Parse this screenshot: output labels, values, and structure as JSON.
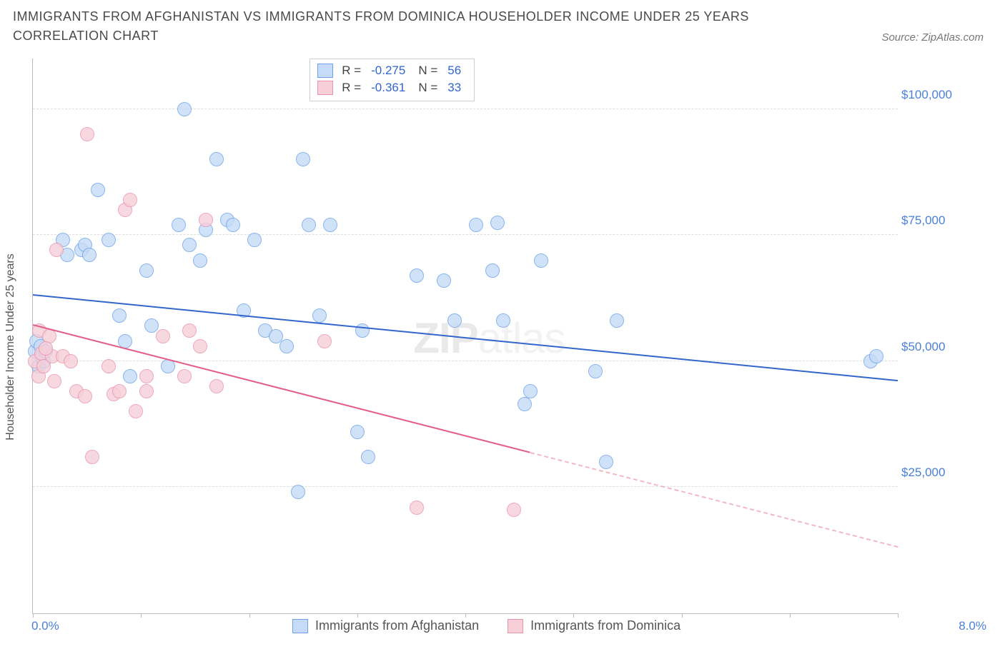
{
  "title": "IMMIGRANTS FROM AFGHANISTAN VS IMMIGRANTS FROM DOMINICA HOUSEHOLDER INCOME UNDER 25 YEARS CORRELATION CHART",
  "source": "Source: ZipAtlas.com",
  "watermark_a": "ZIP",
  "watermark_b": "atlas",
  "chart": {
    "type": "scatter",
    "y_axis_label": "Householder Income Under 25 years",
    "xlim": [
      0,
      8
    ],
    "ylim": [
      0,
      110000
    ],
    "x_tick_positions": [
      0,
      1,
      2,
      3,
      4,
      5,
      6,
      7,
      8
    ],
    "x_start_label": "0.0%",
    "x_end_label": "8.0%",
    "y_ticks": [
      {
        "v": 25000,
        "label": "$25,000"
      },
      {
        "v": 50000,
        "label": "$50,000"
      },
      {
        "v": 75000,
        "label": "$75,000"
      },
      {
        "v": 100000,
        "label": "$100,000"
      }
    ],
    "grid_color": "#dddddd",
    "axis_color": "#bbbbbb",
    "background_color": "#ffffff",
    "point_radius": 9,
    "series": [
      {
        "id": "afghanistan",
        "name": "Immigrants from Afghanistan",
        "fill": "#c5dbf7",
        "stroke": "#6ea3e8",
        "line_color": "#3366cc",
        "R": "-0.275",
        "N": "56",
        "trend": {
          "x1": 0.0,
          "y1": 63000,
          "x2": 8.0,
          "y2": 46000,
          "solid_until_x": 8.0
        },
        "points": [
          [
            0.02,
            52000
          ],
          [
            0.03,
            54000
          ],
          [
            0.05,
            49000
          ],
          [
            0.07,
            53000
          ],
          [
            0.08,
            51000
          ],
          [
            0.1,
            50000
          ],
          [
            0.12,
            52000
          ],
          [
            0.28,
            74000
          ],
          [
            0.32,
            71000
          ],
          [
            0.45,
            72000
          ],
          [
            0.48,
            73000
          ],
          [
            0.52,
            71000
          ],
          [
            0.6,
            84000
          ],
          [
            0.8,
            59000
          ],
          [
            0.85,
            54000
          ],
          [
            0.9,
            47000
          ],
          [
            1.05,
            68000
          ],
          [
            1.1,
            57000
          ],
          [
            1.25,
            49000
          ],
          [
            1.35,
            77000
          ],
          [
            1.4,
            100000
          ],
          [
            1.45,
            73000
          ],
          [
            1.55,
            70000
          ],
          [
            1.6,
            76000
          ],
          [
            1.7,
            90000
          ],
          [
            1.8,
            78000
          ],
          [
            1.85,
            77000
          ],
          [
            1.95,
            60000
          ],
          [
            2.05,
            74000
          ],
          [
            2.15,
            56000
          ],
          [
            2.25,
            55000
          ],
          [
            2.35,
            53000
          ],
          [
            2.45,
            24000
          ],
          [
            2.5,
            90000
          ],
          [
            2.55,
            77000
          ],
          [
            2.65,
            59000
          ],
          [
            2.75,
            77000
          ],
          [
            3.0,
            36000
          ],
          [
            3.05,
            56000
          ],
          [
            3.1,
            31000
          ],
          [
            3.55,
            67000
          ],
          [
            3.8,
            66000
          ],
          [
            3.9,
            58000
          ],
          [
            4.1,
            77000
          ],
          [
            4.25,
            68000
          ],
          [
            4.3,
            77500
          ],
          [
            4.35,
            58000
          ],
          [
            4.55,
            41500
          ],
          [
            4.6,
            44000
          ],
          [
            4.7,
            70000
          ],
          [
            5.2,
            48000
          ],
          [
            5.3,
            30000
          ],
          [
            5.4,
            58000
          ],
          [
            7.75,
            50000
          ],
          [
            7.8,
            51000
          ],
          [
            0.7,
            74000
          ]
        ]
      },
      {
        "id": "dominica",
        "name": "Immigrants from Dominica",
        "fill": "#f6cfd9",
        "stroke": "#e994ad",
        "line_color": "#e35f87",
        "R": "-0.361",
        "N": "33",
        "trend": {
          "x1": 0.0,
          "y1": 57000,
          "x2": 8.0,
          "y2": 13000,
          "solid_until_x": 4.6
        },
        "points": [
          [
            0.02,
            50000
          ],
          [
            0.05,
            47000
          ],
          [
            0.06,
            56000
          ],
          [
            0.08,
            51500
          ],
          [
            0.1,
            49000
          ],
          [
            0.15,
            55000
          ],
          [
            0.18,
            51000
          ],
          [
            0.2,
            46000
          ],
          [
            0.22,
            72000
          ],
          [
            0.28,
            51000
          ],
          [
            0.35,
            50000
          ],
          [
            0.4,
            44000
          ],
          [
            0.48,
            43000
          ],
          [
            0.5,
            95000
          ],
          [
            0.55,
            31000
          ],
          [
            0.7,
            49000
          ],
          [
            0.75,
            43500
          ],
          [
            0.8,
            44000
          ],
          [
            0.85,
            80000
          ],
          [
            0.9,
            82000
          ],
          [
            0.95,
            40000
          ],
          [
            1.05,
            44000
          ],
          [
            1.05,
            47000
          ],
          [
            1.2,
            55000
          ],
          [
            1.4,
            47000
          ],
          [
            1.45,
            56000
          ],
          [
            1.55,
            53000
          ],
          [
            1.6,
            78000
          ],
          [
            1.7,
            45000
          ],
          [
            2.7,
            54000
          ],
          [
            3.55,
            21000
          ],
          [
            4.45,
            20500
          ],
          [
            0.12,
            52500
          ]
        ]
      }
    ]
  },
  "legend": {
    "items": [
      {
        "label": "Immigrants from Afghanistan",
        "fill": "#c5dbf7",
        "stroke": "#6ea3e8"
      },
      {
        "label": "Immigrants from Dominica",
        "fill": "#f6cfd9",
        "stroke": "#e994ad"
      }
    ]
  }
}
